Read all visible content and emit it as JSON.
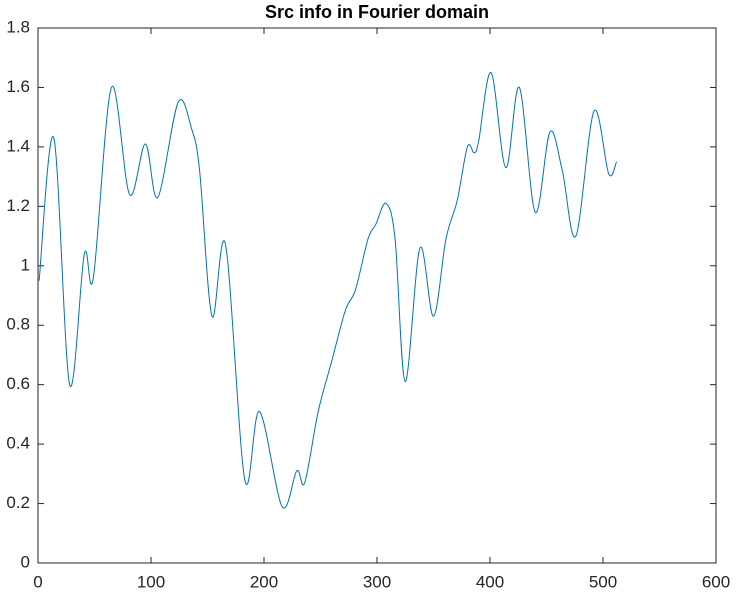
{
  "chart_data": {
    "type": "line",
    "title": "Src info in Fourier domain",
    "x": [
      1,
      14,
      28,
      41,
      49,
      65,
      81,
      95,
      106,
      124,
      136,
      143,
      154,
      166,
      183,
      196,
      216,
      229,
      236,
      248,
      260,
      272,
      281,
      292,
      299,
      308,
      316,
      325,
      338,
      350,
      361,
      371,
      380,
      386,
      390,
      401,
      414,
      426,
      440,
      453,
      464,
      476,
      492,
      505,
      512
    ],
    "series": [
      {
        "color": "#0072bd",
        "values": [
          0.95,
          1.43,
          0.6,
          1.04,
          0.96,
          1.6,
          1.24,
          1.41,
          1.23,
          1.55,
          1.46,
          1.32,
          0.83,
          1.07,
          0.28,
          0.51,
          0.19,
          0.31,
          0.27,
          0.51,
          0.68,
          0.85,
          0.92,
          1.09,
          1.14,
          1.21,
          1.09,
          0.61,
          1.06,
          0.83,
          1.09,
          1.22,
          1.4,
          1.38,
          1.42,
          1.65,
          1.33,
          1.6,
          1.18,
          1.45,
          1.32,
          1.1,
          1.52,
          1.31,
          1.35
        ]
      }
    ],
    "xlim": [
      0,
      600
    ],
    "xticks": [
      0,
      100,
      200,
      300,
      400,
      500,
      600
    ],
    "ylim": [
      0,
      1.8
    ],
    "yticks": [
      0,
      0.2,
      0.4,
      0.6,
      0.8,
      1,
      1.2,
      1.4,
      1.6,
      1.8
    ]
  }
}
